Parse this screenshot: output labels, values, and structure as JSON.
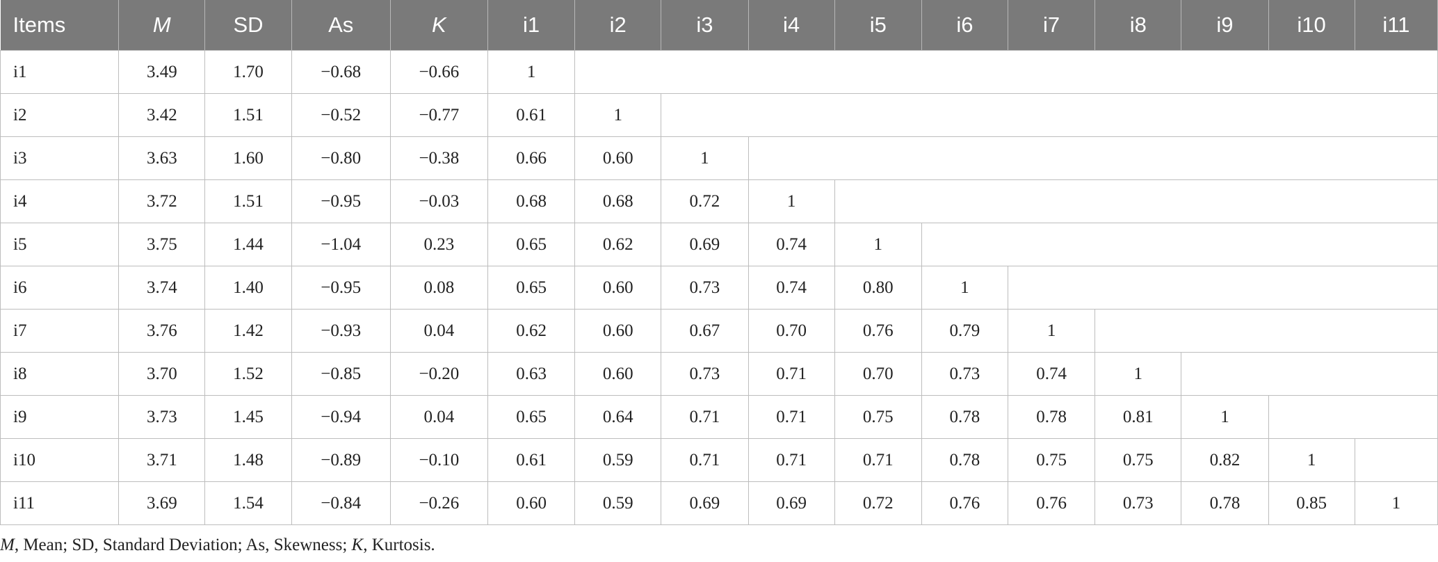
{
  "table": {
    "headers": [
      "Items",
      "M",
      "SD",
      "As",
      "K",
      "i1",
      "i2",
      "i3",
      "i4",
      "i5",
      "i6",
      "i7",
      "i8",
      "i9",
      "i10",
      "i11"
    ],
    "italic_headers": [
      1,
      4
    ],
    "rows": [
      [
        "i1",
        "3.49",
        "1.70",
        "−0.68",
        "−0.66",
        "1"
      ],
      [
        "i2",
        "3.42",
        "1.51",
        "−0.52",
        "−0.77",
        "0.61",
        "1"
      ],
      [
        "i3",
        "3.63",
        "1.60",
        "−0.80",
        "−0.38",
        "0.66",
        "0.60",
        "1"
      ],
      [
        "i4",
        "3.72",
        "1.51",
        "−0.95",
        "−0.03",
        "0.68",
        "0.68",
        "0.72",
        "1"
      ],
      [
        "i5",
        "3.75",
        "1.44",
        "−1.04",
        "0.23",
        "0.65",
        "0.62",
        "0.69",
        "0.74",
        "1"
      ],
      [
        "i6",
        "3.74",
        "1.40",
        "−0.95",
        "0.08",
        "0.65",
        "0.60",
        "0.73",
        "0.74",
        "0.80",
        "1"
      ],
      [
        "i7",
        "3.76",
        "1.42",
        "−0.93",
        "0.04",
        "0.62",
        "0.60",
        "0.67",
        "0.70",
        "0.76",
        "0.79",
        "1"
      ],
      [
        "i8",
        "3.70",
        "1.52",
        "−0.85",
        "−0.20",
        "0.63",
        "0.60",
        "0.73",
        "0.71",
        "0.70",
        "0.73",
        "0.74",
        "1"
      ],
      [
        "i9",
        "3.73",
        "1.45",
        "−0.94",
        "0.04",
        "0.65",
        "0.64",
        "0.71",
        "0.71",
        "0.75",
        "0.78",
        "0.78",
        "0.81",
        "1"
      ],
      [
        "i10",
        "3.71",
        "1.48",
        "−0.89",
        "−0.10",
        "0.61",
        "0.59",
        "0.71",
        "0.71",
        "0.71",
        "0.78",
        "0.75",
        "0.75",
        "0.82",
        "1"
      ],
      [
        "i11",
        "3.69",
        "1.54",
        "−0.84",
        "−0.26",
        "0.60",
        "0.59",
        "0.69",
        "0.69",
        "0.72",
        "0.76",
        "0.76",
        "0.73",
        "0.78",
        "0.85",
        "1"
      ]
    ]
  },
  "note": {
    "parts": [
      {
        "text": "M",
        "italic": true
      },
      {
        "text": ", Mean; SD, Standard Deviation; As, Skewness; ",
        "italic": false
      },
      {
        "text": "K",
        "italic": true
      },
      {
        "text": ", Kurtosis.",
        "italic": false
      }
    ]
  },
  "colors": {
    "header_bg": "#7a7a7a",
    "header_text": "#ffffff",
    "grid": "#bdbdbd",
    "body_text": "#222222"
  }
}
